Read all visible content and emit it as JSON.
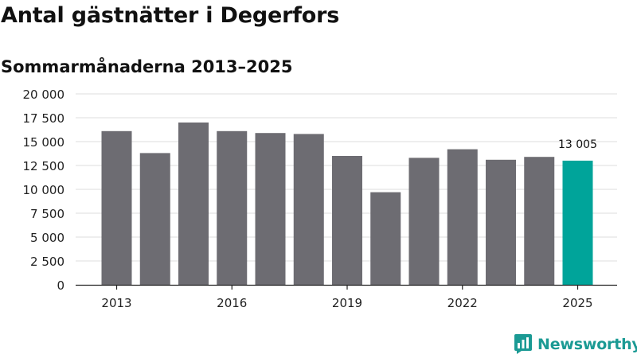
{
  "title": "Antal gästnätter i Degerfors",
  "subtitle": "Sommarmånaderna 2013–2025",
  "brand": {
    "name": "Newsworthy",
    "icon": "newsworthy-logo-icon",
    "color": "#1b9a94"
  },
  "colors": {
    "bar": "#6d6c72",
    "highlight": "#00a49a",
    "grid": "#dddddd",
    "axis": "#222222"
  },
  "chart_data": {
    "type": "bar",
    "title": "Antal gästnätter i Degerfors",
    "subtitle": "Sommarmånaderna 2013–2025",
    "categories": [
      "2013",
      "2014",
      "2015",
      "2016",
      "2017",
      "2018",
      "2019",
      "2020",
      "2021",
      "2022",
      "2023",
      "2024",
      "2025"
    ],
    "values": [
      16100,
      13800,
      17000,
      16100,
      15900,
      15800,
      13500,
      9700,
      13300,
      14200,
      13100,
      13400,
      13005
    ],
    "x_tick_labels": [
      "2013",
      "2016",
      "2019",
      "2022",
      "2025"
    ],
    "y_ticks": [
      {
        "value": 0,
        "label": "0"
      },
      {
        "value": 2500,
        "label": "2 500"
      },
      {
        "value": 5000,
        "label": "5 000"
      },
      {
        "value": 7500,
        "label": "7 500"
      },
      {
        "value": 10000,
        "label": "10 000"
      },
      {
        "value": 12500,
        "label": "12 500"
      },
      {
        "value": 15000,
        "label": "15 000"
      },
      {
        "value": 17500,
        "label": "17 500"
      },
      {
        "value": 20000,
        "label": "20 000"
      }
    ],
    "ylim": [
      0,
      20000
    ],
    "xlabel": "",
    "ylabel": "",
    "grid": true,
    "highlight_category": "2025",
    "annotations": [
      {
        "category": "2025",
        "text": "13 005"
      }
    ]
  }
}
